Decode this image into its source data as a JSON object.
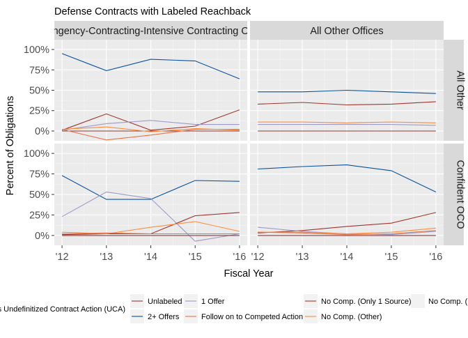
{
  "chart_data": {
    "type": "line",
    "title": "Defense Contracts with Labeled Reachback",
    "xlabel": "Fiscal Year",
    "ylabel": "Percent of Obligations",
    "x": [
      "'12",
      "'13",
      "'14",
      "'15",
      "'16"
    ],
    "y_ticks": [
      "0%",
      "25%",
      "50%",
      "75%",
      "100%"
    ],
    "ylim": [
      -0.12,
      1.12
    ],
    "col_facets": [
      "Contingency-Contracting-Intensive Contracting Offices",
      "All Other Offices"
    ],
    "row_facets": [
      "All Other",
      "Confident OCO"
    ],
    "legend_position": "bottom",
    "legend": [
      {
        "name": "Is Undefinitized Contract Action (UCA)",
        "color": "#f2f2f2",
        "swatch": "blank"
      },
      {
        "name": "Unlabeled",
        "color": "#8b3a3a"
      },
      {
        "name": "1 Offer",
        "color": "#9e9ac8"
      },
      {
        "name": "No Comp. (Only 1 Source)",
        "color": "#a0362e"
      },
      {
        "name": "No Comp. (Unknown)",
        "color": "#f2f2f2",
        "swatch": "blank"
      },
      {
        "name": "2+ Offers",
        "color": "#08519c"
      },
      {
        "name": "Follow on to Competed Action",
        "color": "#e6744a"
      },
      {
        "name": "No Comp. (Other)",
        "color": "#fd8d3c"
      }
    ],
    "panels": [
      {
        "col": 0,
        "row": 0,
        "series": [
          {
            "name": "2+ Offers",
            "color": "#08519c",
            "values": [
              0.95,
              0.74,
              0.88,
              0.86,
              0.64
            ]
          },
          {
            "name": "Unlabeled",
            "color": "#8b3a3a",
            "values": [
              0.0,
              0.0,
              0.0,
              0.0,
              0.0
            ]
          },
          {
            "name": "No Comp. (Only 1 Source)",
            "color": "#a0362e",
            "values": [
              0.01,
              0.21,
              0.01,
              0.06,
              0.26
            ]
          },
          {
            "name": "1 Offer",
            "color": "#9e9ac8",
            "values": [
              0.01,
              0.09,
              0.13,
              0.08,
              0.08
            ]
          },
          {
            "name": "Follow on to Competed Action",
            "color": "#e6744a",
            "values": [
              0.02,
              -0.11,
              -0.05,
              0.02,
              0.02
            ]
          },
          {
            "name": "No Comp. (Other)",
            "color": "#fd8d3c",
            "values": [
              0.02,
              0.05,
              -0.01,
              0.03,
              0.01
            ]
          }
        ]
      },
      {
        "col": 1,
        "row": 0,
        "series": [
          {
            "name": "2+ Offers",
            "color": "#08519c",
            "values": [
              0.48,
              0.48,
              0.5,
              0.48,
              0.46
            ]
          },
          {
            "name": "No Comp. (Only 1 Source)",
            "color": "#a0362e",
            "values": [
              0.33,
              0.35,
              0.32,
              0.33,
              0.36
            ]
          },
          {
            "name": "No Comp. (Other)",
            "color": "#fd8d3c",
            "values": [
              0.11,
              0.11,
              0.1,
              0.11,
              0.1
            ]
          },
          {
            "name": "1 Offer",
            "color": "#9e9ac8",
            "values": [
              0.08,
              0.08,
              0.08,
              0.08,
              0.07
            ]
          },
          {
            "name": "Unlabeled",
            "color": "#8b3a3a",
            "values": [
              0.0,
              0.0,
              0.0,
              0.0,
              0.0
            ]
          }
        ]
      },
      {
        "col": 0,
        "row": 1,
        "series": [
          {
            "name": "2+ Offers",
            "color": "#08519c",
            "values": [
              0.73,
              0.44,
              0.44,
              0.67,
              0.66
            ]
          },
          {
            "name": "1 Offer",
            "color": "#9e9ac8",
            "values": [
              0.23,
              0.53,
              0.45,
              -0.07,
              0.02
            ]
          },
          {
            "name": "No Comp. (Only 1 Source)",
            "color": "#a0362e",
            "values": [
              0.01,
              0.02,
              0.02,
              0.24,
              0.28
            ]
          },
          {
            "name": "No Comp. (Other)",
            "color": "#fd8d3c",
            "values": [
              0.04,
              0.02,
              0.1,
              0.17,
              0.05
            ]
          },
          {
            "name": "Follow on to Competed Action",
            "color": "#e6744a",
            "values": [
              0.02,
              0.03,
              0.02,
              0.02,
              0.02
            ]
          },
          {
            "name": "Unlabeled",
            "color": "#8b3a3a",
            "values": [
              0.0,
              0.0,
              0.0,
              0.0,
              0.0
            ]
          }
        ]
      },
      {
        "col": 1,
        "row": 1,
        "series": [
          {
            "name": "2+ Offers",
            "color": "#08519c",
            "values": [
              0.81,
              0.84,
              0.86,
              0.79,
              0.53
            ]
          },
          {
            "name": "No Comp. (Only 1 Source)",
            "color": "#a0362e",
            "values": [
              0.03,
              0.06,
              0.11,
              0.15,
              0.28
            ]
          },
          {
            "name": "1 Offer",
            "color": "#9e9ac8",
            "values": [
              0.1,
              0.05,
              0.02,
              0.01,
              0.05
            ]
          },
          {
            "name": "No Comp. (Other)",
            "color": "#fd8d3c",
            "values": [
              0.04,
              0.04,
              0.02,
              0.04,
              0.09
            ]
          },
          {
            "name": "Follow on to Competed Action",
            "color": "#e6744a",
            "values": [
              0.04,
              0.03,
              0.01,
              0.02,
              0.06
            ]
          },
          {
            "name": "Unlabeled",
            "color": "#8b3a3a",
            "values": [
              0.0,
              0.0,
              0.0,
              0.0,
              0.0
            ]
          }
        ]
      }
    ]
  }
}
